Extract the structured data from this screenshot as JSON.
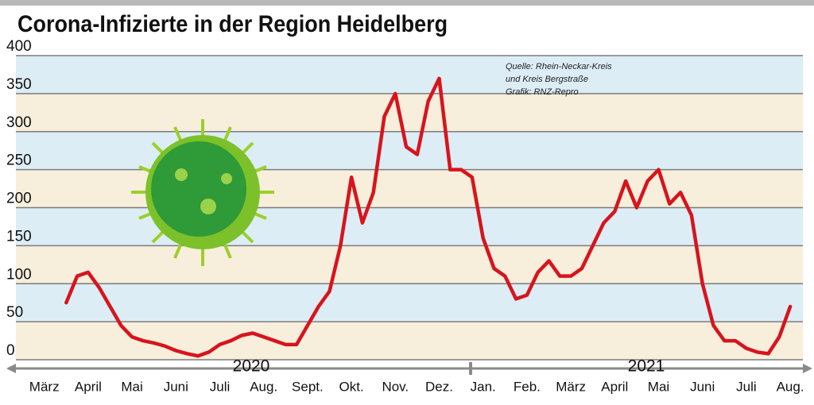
{
  "chart_data": {
    "type": "line",
    "title": "Corona-Infizierte in der Region Heidelberg",
    "source": [
      "Quelle: Rhein-Neckar-Kreis",
      "und Kreis Bergstraße",
      "Grafik: RNZ-Repro"
    ],
    "years": [
      "2020",
      "2021"
    ],
    "categories": [
      null,
      "März",
      null,
      null,
      null,
      "April",
      null,
      null,
      null,
      "Mai",
      null,
      null,
      null,
      "Juni",
      null,
      null,
      null,
      "Juli",
      null,
      null,
      null,
      "Aug.",
      null,
      null,
      null,
      "Sept.",
      null,
      null,
      null,
      "Okt.",
      null,
      null,
      null,
      "Nov.",
      null,
      null,
      null,
      "Dez.",
      null,
      null,
      null,
      "Jan.",
      null,
      null,
      null,
      "Feb.",
      null,
      null,
      null,
      "März",
      null,
      null,
      null,
      "April",
      null,
      null,
      null,
      "Mai",
      null,
      null,
      null,
      "Juni",
      null,
      null,
      null,
      "Juli",
      null,
      null,
      null,
      "Aug."
    ],
    "series": [
      {
        "name": "Infizierte",
        "color": "#d7141d",
        "values": [
          null,
          null,
          null,
          75,
          110,
          115,
          95,
          70,
          45,
          30,
          25,
          22,
          18,
          12,
          8,
          5,
          10,
          20,
          25,
          32,
          35,
          30,
          25,
          20,
          20,
          45,
          70,
          90,
          150,
          240,
          180,
          220,
          320,
          350,
          280,
          270,
          340,
          370,
          250,
          250,
          240,
          160,
          120,
          110,
          80,
          85,
          115,
          130,
          110,
          110,
          120,
          150,
          180,
          195,
          235,
          200,
          235,
          250,
          205,
          220,
          190,
          100,
          45,
          25,
          25,
          15,
          10,
          8,
          30,
          70
        ]
      }
    ],
    "ylim": [
      0,
      400
    ],
    "yticks": [
      0,
      50,
      100,
      150,
      200,
      250,
      300,
      350,
      400
    ],
    "grid": true
  }
}
